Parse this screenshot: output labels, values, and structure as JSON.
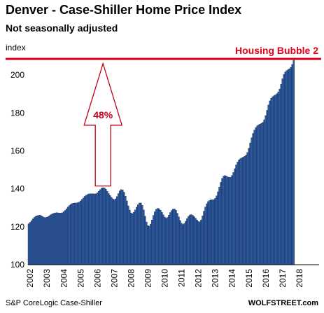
{
  "header": {
    "title": "Denver  - Case-Shiller Home Price Index",
    "subtitle": "Not seasonally adjusted"
  },
  "footer": {
    "source": "S&P CoreLogic Case-Shiller",
    "brand": "WOLFSTREET.com"
  },
  "colors": {
    "bar": "#2e5aa0",
    "bar_edge": "#13284f",
    "reference_line": "#e3001b",
    "arrow": "#c0001a"
  },
  "chart_data": {
    "type": "bar",
    "title": "Denver  - Case-Shiller Home Price Index",
    "subtitle": "Not seasonally adjusted",
    "ylabel": "index",
    "xlabel": "",
    "ylim": [
      100,
      210
    ],
    "yticks": [
      100,
      120,
      140,
      160,
      180,
      200
    ],
    "xtick_labels": [
      "2002",
      "2003",
      "2004",
      "2005",
      "2006",
      "2007",
      "2008",
      "2009",
      "2010",
      "2011",
      "2012",
      "2013",
      "2014",
      "2015",
      "2016",
      "2017",
      "2018"
    ],
    "start": "2002-01",
    "frequency": "monthly",
    "grid": false,
    "legend": "none",
    "values": [
      121.5,
      122.3,
      123.2,
      124.1,
      124.9,
      125.5,
      125.8,
      126.0,
      126.1,
      125.8,
      125.3,
      124.9,
      124.8,
      125.0,
      125.4,
      125.9,
      126.4,
      126.8,
      127.1,
      127.3,
      127.4,
      127.3,
      127.2,
      127.2,
      127.4,
      127.9,
      128.6,
      129.5,
      130.4,
      131.2,
      131.8,
      132.2,
      132.4,
      132.5,
      132.5,
      132.7,
      133.0,
      133.6,
      134.4,
      135.2,
      136.0,
      136.6,
      137.0,
      137.3,
      137.4,
      137.4,
      137.4,
      137.3,
      137.4,
      137.9,
      138.7,
      139.6,
      140.3,
      140.6,
      140.5,
      139.8,
      138.7,
      137.5,
      136.5,
      135.5,
      134.7,
      134.3,
      134.7,
      135.9,
      137.5,
      138.9,
      139.6,
      139.4,
      138.2,
      136.1,
      133.6,
      131.0,
      128.8,
      127.3,
      126.9,
      127.6,
      128.9,
      130.3,
      131.6,
      132.5,
      132.5,
      131.3,
      128.9,
      125.6,
      122.5,
      120.6,
      120.3,
      121.4,
      123.6,
      126.0,
      127.9,
      129.2,
      129.7,
      129.5,
      128.7,
      127.6,
      126.3,
      125.1,
      124.5,
      124.9,
      126.1,
      127.5,
      128.6,
      129.3,
      129.4,
      128.7,
      127.1,
      125.2,
      123.3,
      121.9,
      121.2,
      121.7,
      122.9,
      124.3,
      125.5,
      126.2,
      126.4,
      126.0,
      125.3,
      124.5,
      123.6,
      122.8,
      122.5,
      123.6,
      125.7,
      128.2,
      130.4,
      132.1,
      133.3,
      133.9,
      134.2,
      134.2,
      134.3,
      134.9,
      136.3,
      138.4,
      140.9,
      143.4,
      145.5,
      146.7,
      147.0,
      146.7,
      146.2,
      146.0,
      146.1,
      147.0,
      148.6,
      150.6,
      152.6,
      154.2,
      155.3,
      155.9,
      156.3,
      156.7,
      157.1,
      157.8,
      159.2,
      161.4,
      164.2,
      166.9,
      169.2,
      171.0,
      172.3,
      173.2,
      173.7,
      174.1,
      174.5,
      175.1,
      176.4,
      178.6,
      181.4,
      184.2,
      186.4,
      187.8,
      188.6,
      189.1,
      189.5,
      190.1,
      191.0,
      192.6,
      195.1,
      198.0,
      200.3,
      201.6,
      202.3,
      202.8,
      203.3,
      204.1,
      205.6,
      207.9
    ],
    "reference_line": {
      "value": 208.5,
      "label": "Housing Bubble 2"
    },
    "annotation": {
      "label": "48%",
      "from_value": 141.5,
      "to_value": 206,
      "at": "2006-06"
    }
  }
}
